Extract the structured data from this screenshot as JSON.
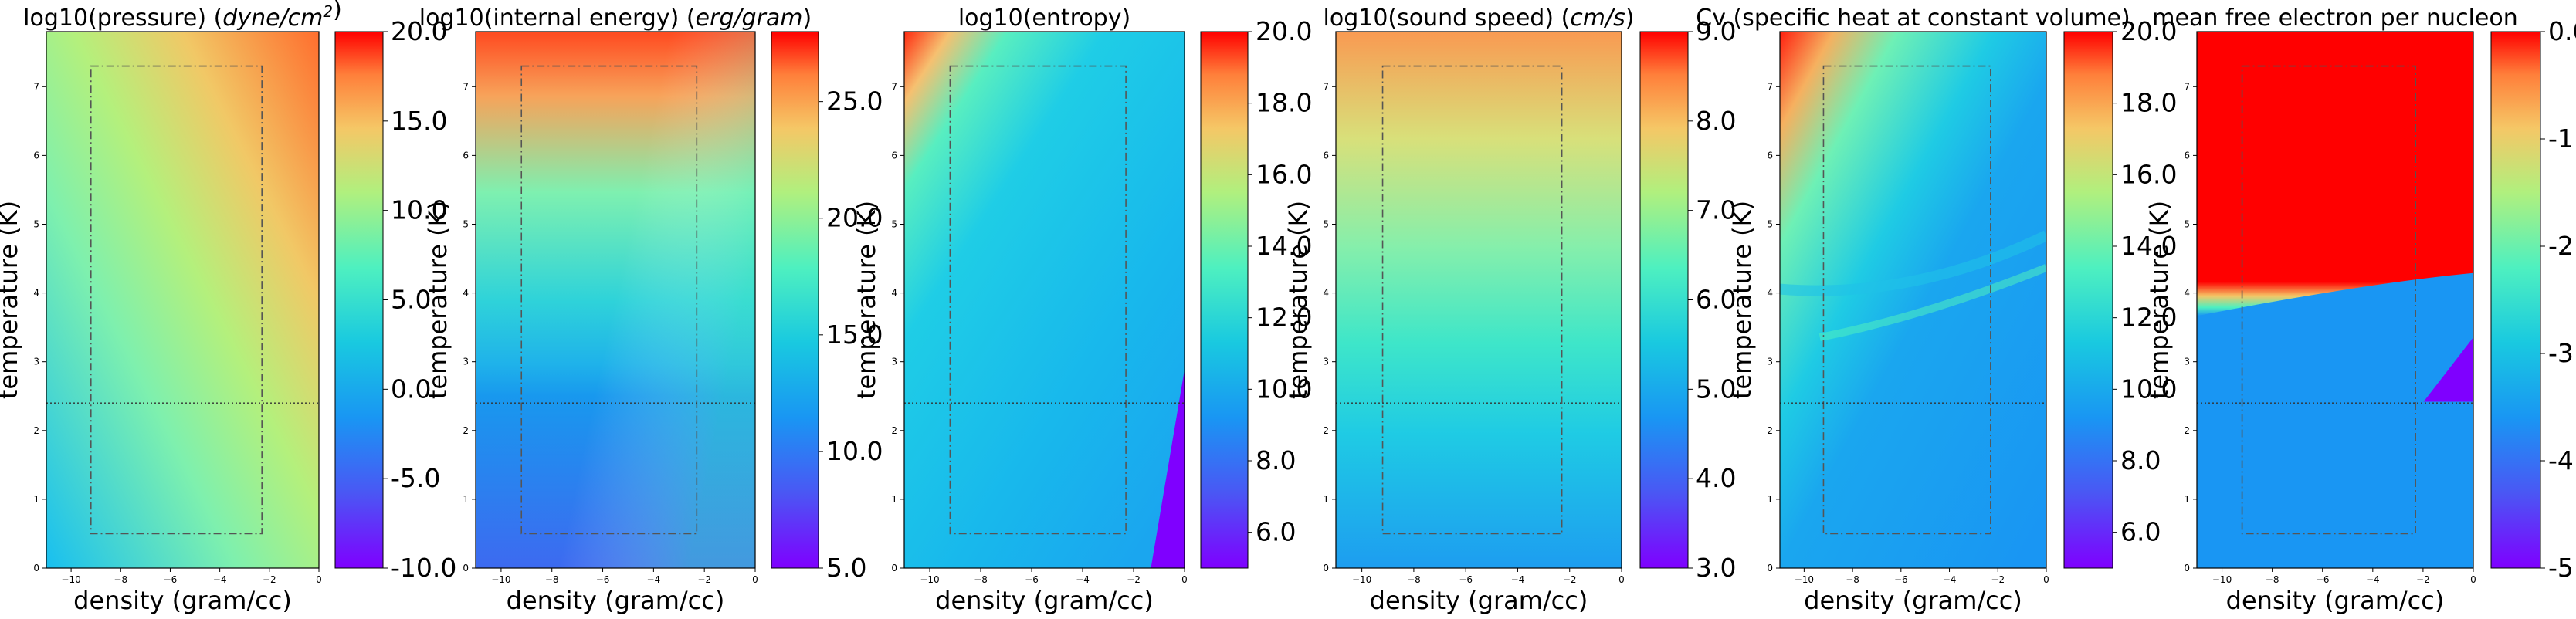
{
  "chart_data": [
    {
      "type": "heatmap",
      "title_parts": [
        {
          "t": "log10(pressure) ("
        },
        {
          "t": "dyne/cm",
          "i": true
        },
        {
          "t": "2",
          "i": true,
          "sup": true
        },
        {
          "t": ")"
        }
      ],
      "xlabel": "density (gram/cc)",
      "ylabel": "temperature (K)",
      "xlim": [
        -11,
        0
      ],
      "ylim": [
        0,
        7.8
      ],
      "xticks": [
        "−10",
        "−8",
        "−6",
        "−4",
        "−2",
        "0"
      ],
      "yticks": [
        "0",
        "1",
        "2",
        "3",
        "4",
        "5",
        "6",
        "7"
      ],
      "colorbar": {
        "min": -10,
        "max": 20,
        "ticks": [
          "-10.0",
          "-5.0",
          "0.0",
          "5.0",
          "10.0",
          "15.0",
          "20.0"
        ]
      },
      "box": {
        "x": [
          -9.2,
          -2.3
        ],
        "y": [
          0.5,
          7.3
        ]
      },
      "hline_y": 2.4
    },
    {
      "type": "heatmap",
      "title_parts": [
        {
          "t": "log10(internal energy) ("
        },
        {
          "t": "erg/gram",
          "i": true
        },
        {
          "t": ")"
        }
      ],
      "xlabel": "density (gram/cc)",
      "ylabel": "temperature (K)",
      "xlim": [
        -11,
        0
      ],
      "ylim": [
        0,
        7.8
      ],
      "xticks": [
        "−10",
        "−8",
        "−6",
        "−4",
        "−2",
        "0"
      ],
      "yticks": [
        "0",
        "1",
        "2",
        "3",
        "4",
        "5",
        "6",
        "7"
      ],
      "colorbar": {
        "min": 5,
        "max": 28,
        "ticks": [
          "5.0",
          "10.0",
          "15.0",
          "20.0",
          "25.0"
        ]
      },
      "box": {
        "x": [
          -9.2,
          -2.3
        ],
        "y": [
          0.5,
          7.3
        ]
      },
      "hline_y": 2.4
    },
    {
      "type": "heatmap",
      "title_parts": [
        {
          "t": "log10(entropy)"
        }
      ],
      "xlabel": "density (gram/cc)",
      "ylabel": "temperature (K)",
      "xlim": [
        -11,
        0
      ],
      "ylim": [
        0,
        7.8
      ],
      "xticks": [
        "−10",
        "−8",
        "−6",
        "−4",
        "−2",
        "0"
      ],
      "yticks": [
        "0",
        "1",
        "2",
        "3",
        "4",
        "5",
        "6",
        "7"
      ],
      "colorbar": {
        "min": 5,
        "max": 20,
        "ticks": [
          "6.0",
          "8.0",
          "10.0",
          "12.0",
          "14.0",
          "16.0",
          "18.0",
          "20.0"
        ]
      },
      "box": {
        "x": [
          -9.2,
          -2.3
        ],
        "y": [
          0.5,
          7.3
        ]
      },
      "hline_y": 2.4
    },
    {
      "type": "heatmap",
      "title_parts": [
        {
          "t": "log10(sound speed) ("
        },
        {
          "t": "cm/s",
          "i": true
        },
        {
          "t": ")"
        }
      ],
      "xlabel": "density (gram/cc)",
      "ylabel": "temperature (K)",
      "xlim": [
        -11,
        0
      ],
      "ylim": [
        0,
        7.8
      ],
      "xticks": [
        "−10",
        "−8",
        "−6",
        "−4",
        "−2",
        "0"
      ],
      "yticks": [
        "0",
        "1",
        "2",
        "3",
        "4",
        "5",
        "6",
        "7"
      ],
      "colorbar": {
        "min": 3,
        "max": 9,
        "ticks": [
          "3.0",
          "4.0",
          "5.0",
          "6.0",
          "7.0",
          "8.0",
          "9.0"
        ]
      },
      "box": {
        "x": [
          -9.2,
          -2.3
        ],
        "y": [
          0.5,
          7.3
        ]
      },
      "hline_y": 2.4
    },
    {
      "type": "heatmap",
      "title_parts": [
        {
          "t": "Cv (specific heat at constant volume)"
        }
      ],
      "xlabel": "density (gram/cc)",
      "ylabel": "temperature (K)",
      "xlim": [
        -11,
        0
      ],
      "ylim": [
        0,
        7.8
      ],
      "xticks": [
        "−10",
        "−8",
        "−6",
        "−4",
        "−2",
        "0"
      ],
      "yticks": [
        "0",
        "1",
        "2",
        "3",
        "4",
        "5",
        "6",
        "7"
      ],
      "colorbar": {
        "min": 5,
        "max": 20,
        "ticks": [
          "6.0",
          "8.0",
          "10.0",
          "12.0",
          "14.0",
          "16.0",
          "18.0",
          "20.0"
        ]
      },
      "box": {
        "x": [
          -9.2,
          -2.3
        ],
        "y": [
          0.5,
          7.3
        ]
      },
      "hline_y": 2.4
    },
    {
      "type": "heatmap",
      "title_parts": [
        {
          "t": "mean free electron per nucleon"
        }
      ],
      "xlabel": "density (gram/cc)",
      "ylabel": "temperature (K)",
      "xlim": [
        -11,
        0
      ],
      "ylim": [
        0,
        7.8
      ],
      "xticks": [
        "−10",
        "−8",
        "−6",
        "−4",
        "−2",
        "0"
      ],
      "yticks": [
        "0",
        "1",
        "2",
        "3",
        "4",
        "5",
        "6",
        "7"
      ],
      "colorbar": {
        "min": -5,
        "max": 0,
        "ticks": [
          "-5.0",
          "-4.0",
          "-3.0",
          "-2.0",
          "-1.0",
          "0.0"
        ]
      },
      "box": {
        "x": [
          -9.2,
          -2.3
        ],
        "y": [
          0.5,
          7.3
        ]
      },
      "hline_y": 2.4
    }
  ]
}
